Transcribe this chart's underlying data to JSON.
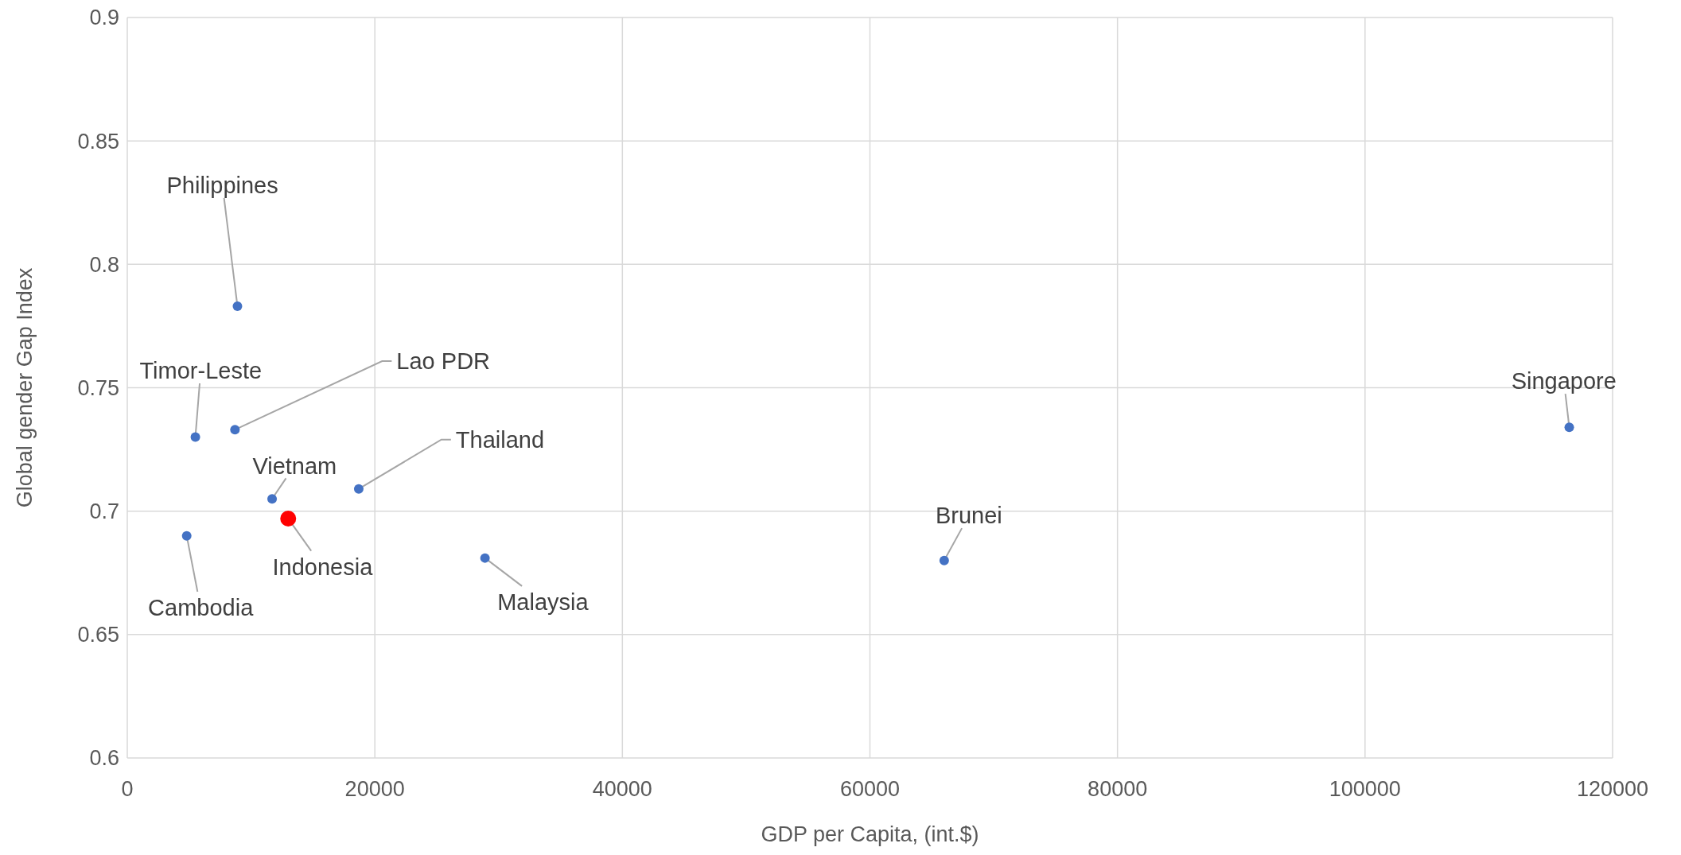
{
  "chart_data": {
    "type": "scatter",
    "xlabel": "GDP per Capita, (int.$)",
    "ylabel": "Global gender Gap Index",
    "xlim": [
      0,
      120000
    ],
    "xticks": [
      0,
      20000,
      40000,
      60000,
      80000,
      100000,
      120000
    ],
    "ylim": [
      0.6,
      0.9
    ],
    "yticks": [
      0.6,
      0.65,
      0.7,
      0.75,
      0.8,
      0.85,
      0.9
    ],
    "grid": true,
    "marker": "circle",
    "series": [
      {
        "color": "#4472c4",
        "x": [
          8900,
          5500,
          8700,
          11700,
          18700,
          4800,
          28900,
          66000,
          116500
        ],
        "values": [
          0.783,
          0.73,
          0.733,
          0.705,
          0.709,
          0.69,
          0.681,
          0.68,
          0.734
        ]
      },
      {
        "color": "#ff0000",
        "x": [
          13000
        ],
        "values": [
          0.697
        ]
      }
    ],
    "annotations": [
      {
        "text": "Philippines",
        "x": 8900,
        "y": 0.783
      },
      {
        "text": "Timor-Leste",
        "x": 5500,
        "y": 0.73
      },
      {
        "text": "Lao PDR",
        "x": 8700,
        "y": 0.733
      },
      {
        "text": "Vietnam",
        "x": 11700,
        "y": 0.705
      },
      {
        "text": "Thailand",
        "x": 18700,
        "y": 0.709
      },
      {
        "text": "Indonesia",
        "x": 13000,
        "y": 0.697
      },
      {
        "text": "Cambodia",
        "x": 4800,
        "y": 0.69
      },
      {
        "text": "Malaysia",
        "x": 28900,
        "y": 0.681
      },
      {
        "text": "Brunei",
        "x": 66000,
        "y": 0.68
      },
      {
        "text": "Singapore",
        "x": 116500,
        "y": 0.734
      }
    ]
  }
}
